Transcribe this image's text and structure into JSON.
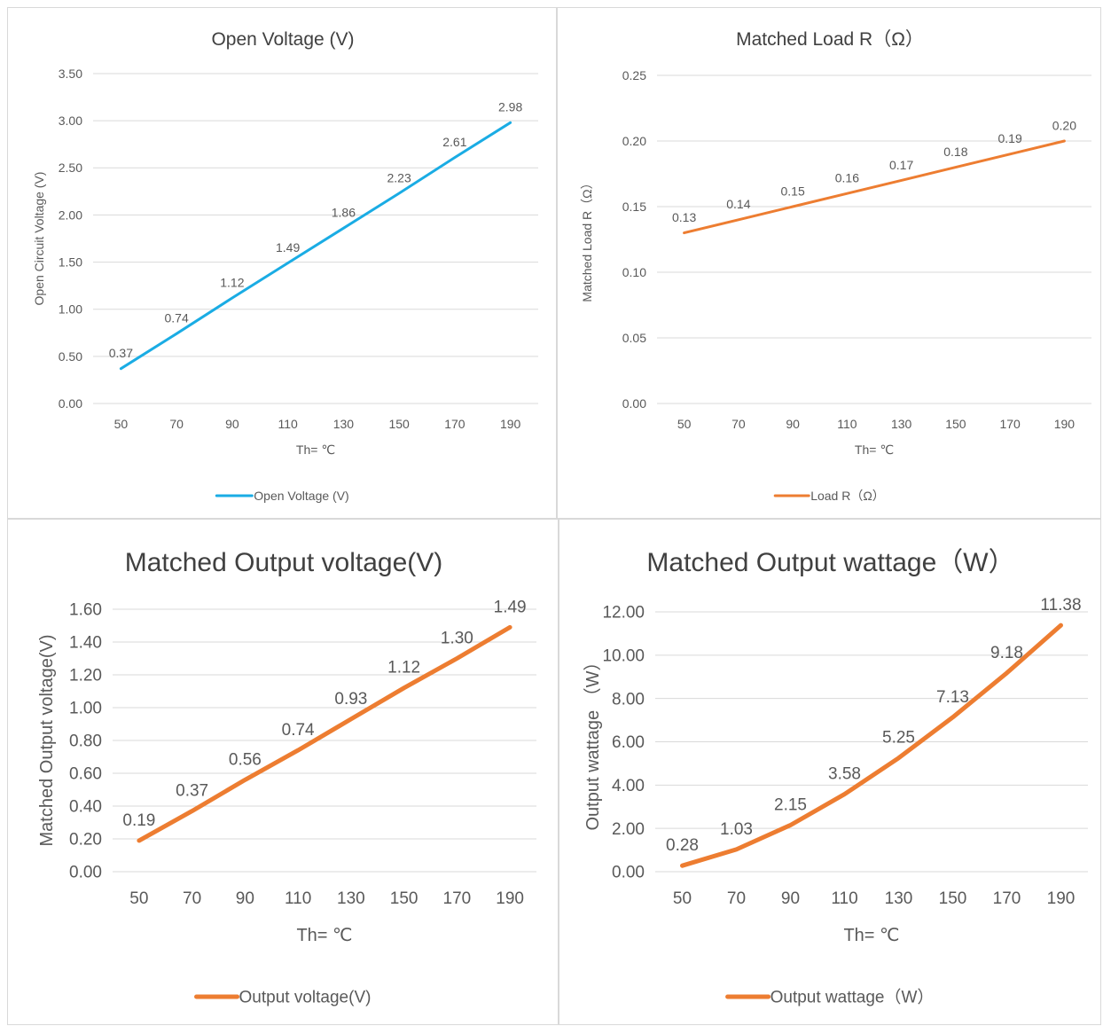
{
  "charts": [
    {
      "type": "line",
      "title": "Open Voltage (V)",
      "xlabel": "Th= ℃",
      "ylabel": "Open Circuit Voltage (V)",
      "categories": [
        "50",
        "70",
        "90",
        "110",
        "130",
        "150",
        "170",
        "190"
      ],
      "yticks": [
        "0.00",
        "0.50",
        "1.00",
        "1.50",
        "2.00",
        "2.50",
        "3.00",
        "3.50"
      ],
      "ylim": [
        0,
        3.5
      ],
      "series": [
        {
          "name": "Open Voltage (V)",
          "color": "#1aace4",
          "values": [
            0.37,
            0.74,
            1.12,
            1.49,
            1.86,
            2.23,
            2.61,
            2.98
          ],
          "labels": [
            "0.37",
            "0.74",
            "1.12",
            "1.49",
            "1.86",
            "2.23",
            "2.61",
            "2.98"
          ]
        }
      ],
      "grid": true,
      "legend_position": "bottom"
    },
    {
      "type": "line",
      "title": "Matched Load R（Ω）",
      "xlabel": "Th= ℃",
      "ylabel": "Matched Load R（Ω）",
      "categories": [
        "50",
        "70",
        "90",
        "110",
        "130",
        "150",
        "170",
        "190"
      ],
      "yticks": [
        "0.00",
        "0.05",
        "0.10",
        "0.15",
        "0.20",
        "0.25"
      ],
      "ylim": [
        0,
        0.25
      ],
      "series": [
        {
          "name": "Load R（Ω）",
          "color": "#ed7d31",
          "values": [
            0.13,
            0.14,
            0.15,
            0.16,
            0.17,
            0.18,
            0.19,
            0.2
          ],
          "labels": [
            "0.13",
            "0.14",
            "0.15",
            "0.16",
            "0.17",
            "0.18",
            "0.19",
            "0.20"
          ]
        }
      ],
      "grid": true,
      "legend_position": "bottom"
    },
    {
      "type": "line",
      "title": "Matched Output voltage(V)",
      "xlabel": "Th= ℃",
      "ylabel": "Matched Output voltage(V)",
      "categories": [
        "50",
        "70",
        "90",
        "110",
        "130",
        "150",
        "170",
        "190"
      ],
      "yticks": [
        "0.00",
        "0.20",
        "0.40",
        "0.60",
        "0.80",
        "1.00",
        "1.20",
        "1.40",
        "1.60"
      ],
      "ylim": [
        0,
        1.6
      ],
      "series": [
        {
          "name": "Output voltage(V)",
          "color": "#ed7d31",
          "values": [
            0.19,
            0.37,
            0.56,
            0.74,
            0.93,
            1.12,
            1.3,
            1.49
          ],
          "labels": [
            "0.19",
            "0.37",
            "0.56",
            "0.74",
            "0.93",
            "1.12",
            "1.30",
            "1.49"
          ]
        }
      ],
      "grid": true,
      "legend_position": "bottom"
    },
    {
      "type": "line",
      "title": "Matched Output wattage（W）",
      "xlabel": "Th= ℃",
      "ylabel": "Output wattage （W）",
      "categories": [
        "50",
        "70",
        "90",
        "110",
        "130",
        "150",
        "170",
        "190"
      ],
      "yticks": [
        "0.00",
        "2.00",
        "4.00",
        "6.00",
        "8.00",
        "10.00",
        "12.00"
      ],
      "ylim": [
        0,
        12
      ],
      "series": [
        {
          "name": "Output wattage（W）",
          "color": "#ed7d31",
          "values": [
            0.28,
            1.03,
            2.15,
            3.58,
            5.25,
            7.13,
            9.18,
            11.38
          ],
          "labels": [
            "0.28",
            "1.03",
            "2.15",
            "3.58",
            "5.25",
            "7.13",
            "9.18",
            "11.38"
          ]
        }
      ],
      "grid": true,
      "legend_position": "bottom"
    }
  ]
}
